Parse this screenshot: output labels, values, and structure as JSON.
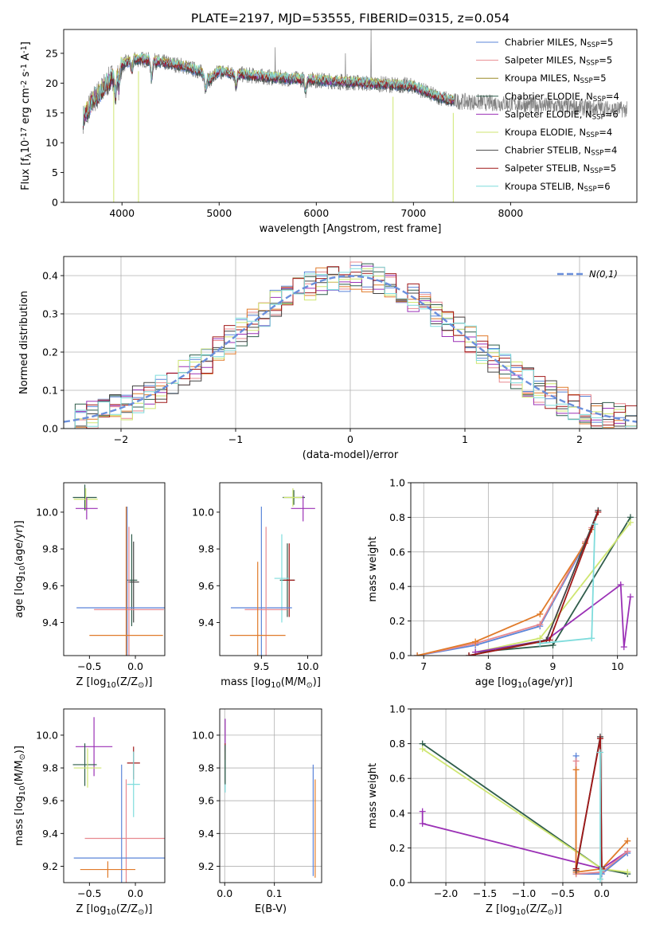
{
  "figure": {
    "title": "PLATE=2197, MJD=53555, FIBERID=0315, z=0.054"
  },
  "chart_data": [
    {
      "id": "spectrum",
      "type": "line",
      "xlabel": "wavelength [Angstrom, rest frame]",
      "ylabel": "Flux [f_λ10^-17 erg cm^-2 s^-1 A^-1]",
      "xlim": [
        3400,
        9300
      ],
      "ylim": [
        0,
        29
      ],
      "xticks": [
        4000,
        5000,
        6000,
        7000,
        8000
      ],
      "yticks": [
        0,
        5,
        10,
        15,
        20,
        25
      ],
      "grid": false,
      "legend_position": "right",
      "data_color": "#7f7f7f",
      "continuum": {
        "x": [
          3600,
          3700,
          3800,
          3900,
          4000,
          4100,
          4200,
          4400,
          4600,
          4800,
          4900,
          5000,
          5200,
          5500,
          6000,
          6500,
          7000,
          7200,
          7400
        ],
        "y": [
          14,
          17,
          19,
          21,
          23,
          24,
          24,
          23.5,
          23,
          22,
          20.5,
          22,
          21.5,
          21,
          20.5,
          20,
          19.5,
          18,
          17
        ]
      },
      "absorption_dips": [
        {
          "x": 3934,
          "depth": 4
        },
        {
          "x": 3969,
          "depth": 3
        },
        {
          "x": 4102,
          "depth": 2
        },
        {
          "x": 4304,
          "depth": 3
        },
        {
          "x": 4861,
          "depth": 2
        },
        {
          "x": 5175,
          "depth": 2
        },
        {
          "x": 5890,
          "depth": 2
        }
      ],
      "data_spikes": [
        {
          "x": 6563,
          "y": 29
        },
        {
          "x": 5577,
          "y": 26
        },
        {
          "x": 6300,
          "y": 25
        }
      ],
      "data_gaps": [
        {
          "x": 3915,
          "y": 0
        },
        {
          "x": 4170,
          "y": 0
        },
        {
          "x": 6790,
          "y": 0
        },
        {
          "x": 7410,
          "y": 0
        }
      ],
      "series": [
        {
          "name": "Chabrier MILES, N_SSP=5",
          "color": "#5b85d9"
        },
        {
          "name": "Salpeter MILES, N_SSP=5",
          "color": "#e8898f"
        },
        {
          "name": "Kroupa MILES, N_SSP=5",
          "color": "#9a8a28"
        },
        {
          "name": "Chabrier ELODIE, N_SSP=4",
          "color": "#2f5d4b"
        },
        {
          "name": "Salpeter ELODIE, N_SSP=6",
          "color": "#9b31b6"
        },
        {
          "name": "Kroupa ELODIE, N_SSP=4",
          "color": "#cfe671"
        },
        {
          "name": "Chabrier STELIB, N_SSP=4",
          "color": "#444444"
        },
        {
          "name": "Salpeter STELIB, N_SSP=5",
          "color": "#a01818"
        },
        {
          "name": "Kroupa STELIB, N_SSP=6",
          "color": "#7fdcdc"
        }
      ]
    },
    {
      "id": "residuals",
      "type": "line",
      "xlabel": "(data-model)/error",
      "ylabel": "Normed distribution",
      "xlim": [
        -2.5,
        2.5
      ],
      "ylim": [
        0,
        0.45
      ],
      "xticks": [
        -2,
        -1,
        0,
        1,
        2
      ],
      "yticks": [
        0.0,
        0.1,
        0.2,
        0.3,
        0.4
      ],
      "grid": true,
      "legend_position": "top-right",
      "reference_curve": {
        "name": "N(0,1)",
        "color": "#6a8fdc",
        "style": "dashed",
        "mean": 0,
        "sigma": 1
      },
      "bin_width": 0.1,
      "histogram_colors": [
        "#5b85d9",
        "#e8898f",
        "#e07b2a",
        "#2f5d4b",
        "#9b31b6",
        "#cfe671",
        "#444444",
        "#a01818",
        "#7fdcdc"
      ],
      "histogram_jitter": 0.02
    },
    {
      "id": "age_vs_z",
      "type": "scatter",
      "xlabel": "Z [log10(Z/Z⊙)]",
      "ylabel": "age  [log10(age/yr)]",
      "xlim": [
        -0.78,
        0.32
      ],
      "ylim": [
        9.22,
        10.16
      ],
      "xticks": [
        -0.5,
        0.0
      ],
      "yticks": [
        9.4,
        9.6,
        9.8,
        10.0
      ],
      "grid": false,
      "points": [
        {
          "x": -0.55,
          "y": 10.08,
          "xerr": 0.13,
          "yerr": 0.07,
          "color": "#2f5d4b"
        },
        {
          "x": -0.54,
          "y": 10.07,
          "xerr": 0.13,
          "yerr": 0.06,
          "color": "#cfe671"
        },
        {
          "x": -0.53,
          "y": 10.02,
          "xerr": 0.12,
          "yerr": 0.06,
          "color": "#9b31b6"
        },
        {
          "x": -0.04,
          "y": 9.63,
          "xerr": 0.06,
          "yerr": 0.25,
          "color": "#2f5d4b"
        },
        {
          "x": -0.02,
          "y": 9.62,
          "xerr": 0.06,
          "yerr": 0.22,
          "color": "#444444"
        },
        {
          "x": -0.09,
          "y": 9.48,
          "xerr": 0.55,
          "yerr": 0.55,
          "color": "#5b85d9"
        },
        {
          "x": -0.07,
          "y": 9.47,
          "xerr": 0.38,
          "yerr": 0.45,
          "color": "#e8898f"
        },
        {
          "x": -0.1,
          "y": 9.33,
          "xerr": 0.4,
          "yerr": 0.7,
          "color": "#e07b2a"
        }
      ]
    },
    {
      "id": "age_vs_mass",
      "type": "scatter",
      "xlabel": "mass [log10(M/M⊙)]",
      "ylabel": "",
      "xlim": [
        9.05,
        10.15
      ],
      "ylim": [
        9.22,
        10.16
      ],
      "xticks": [
        9.5,
        10.0
      ],
      "yticks": [
        9.4,
        9.6,
        9.8,
        10.0
      ],
      "grid": false,
      "points": [
        {
          "x": 9.85,
          "y": 10.08,
          "xerr": 0.12,
          "yerr": 0.04,
          "color": "#2f5d4b"
        },
        {
          "x": 9.84,
          "y": 10.08,
          "xerr": 0.1,
          "yerr": 0.05,
          "color": "#cfe671"
        },
        {
          "x": 9.95,
          "y": 10.02,
          "xerr": 0.13,
          "yerr": 0.07,
          "color": "#9b31b6"
        },
        {
          "x": 9.78,
          "y": 9.63,
          "xerr": 0.08,
          "yerr": 0.2,
          "color": "#2f5d4b"
        },
        {
          "x": 9.8,
          "y": 9.63,
          "xerr": 0.06,
          "yerr": 0.2,
          "color": "#a01818"
        },
        {
          "x": 9.72,
          "y": 9.64,
          "xerr": 0.08,
          "yerr": 0.24,
          "color": "#7fdcdc"
        },
        {
          "x": 9.5,
          "y": 9.48,
          "xerr": 0.33,
          "yerr": 0.55,
          "color": "#5b85d9"
        },
        {
          "x": 9.55,
          "y": 9.47,
          "xerr": 0.23,
          "yerr": 0.45,
          "color": "#e8898f"
        },
        {
          "x": 9.46,
          "y": 9.33,
          "xerr": 0.3,
          "yerr": 0.4,
          "color": "#e07b2a"
        }
      ]
    },
    {
      "id": "weight_vs_age",
      "type": "line",
      "xlabel": "age  [log10(age/yr)]",
      "ylabel": "mass weight",
      "xlim": [
        6.8,
        10.3
      ],
      "ylim": [
        0,
        1.0
      ],
      "xticks": [
        7,
        8,
        9,
        10
      ],
      "yticks": [
        0.0,
        0.2,
        0.4,
        0.6,
        0.8,
        1.0
      ],
      "grid": true,
      "series": [
        {
          "color": "#5b85d9",
          "x": [
            6.9,
            7.8,
            8.8,
            9.5,
            9.6
          ],
          "y": [
            0.0,
            0.06,
            0.17,
            0.65,
            0.73
          ]
        },
        {
          "color": "#e8898f",
          "x": [
            6.9,
            7.8,
            8.8,
            9.5,
            9.6
          ],
          "y": [
            0.0,
            0.07,
            0.18,
            0.66,
            0.74
          ]
        },
        {
          "color": "#e07b2a",
          "x": [
            6.9,
            7.8,
            8.8,
            9.5,
            9.6
          ],
          "y": [
            0.0,
            0.08,
            0.24,
            0.65,
            0.73
          ]
        },
        {
          "color": "#2f5d4b",
          "x": [
            7.8,
            9.0,
            10.2
          ],
          "y": [
            0.02,
            0.06,
            0.8
          ]
        },
        {
          "color": "#cfe671",
          "x": [
            7.8,
            8.8,
            10.2
          ],
          "y": [
            0.02,
            0.1,
            0.77
          ]
        },
        {
          "color": "#9b31b6",
          "x": [
            7.8,
            8.9,
            10.05,
            10.1,
            10.2
          ],
          "y": [
            0.02,
            0.09,
            0.41,
            0.05,
            0.34
          ]
        },
        {
          "color": "#444444",
          "x": [
            7.7,
            8.9,
            9.7
          ],
          "y": [
            0.0,
            0.09,
            0.84
          ]
        },
        {
          "color": "#a01818",
          "x": [
            7.7,
            8.95,
            9.7
          ],
          "y": [
            0.0,
            0.09,
            0.83
          ]
        },
        {
          "color": "#7fdcdc",
          "x": [
            8.8,
            9.6,
            9.65
          ],
          "y": [
            0.07,
            0.1,
            0.76
          ]
        }
      ]
    },
    {
      "id": "mass_vs_z",
      "type": "scatter",
      "xlabel": "Z [log10(Z/Z⊙)]",
      "ylabel": "mass [log10(M/M⊙)]",
      "xlim": [
        -0.78,
        0.32
      ],
      "ylim": [
        9.1,
        10.16
      ],
      "xticks": [
        -0.5,
        0.0
      ],
      "yticks": [
        9.2,
        9.4,
        9.6,
        9.8,
        10.0
      ],
      "grid": false,
      "points": [
        {
          "x": -0.45,
          "y": 9.93,
          "xerr": 0.2,
          "yerr": 0.18,
          "color": "#9b31b6"
        },
        {
          "x": -0.55,
          "y": 9.82,
          "xerr": 0.13,
          "yerr": 0.13,
          "color": "#2f5d4b"
        },
        {
          "x": -0.52,
          "y": 9.8,
          "xerr": 0.15,
          "yerr": 0.12,
          "color": "#cfe671"
        },
        {
          "x": -0.02,
          "y": 9.83,
          "xerr": 0.07,
          "yerr": 0.1,
          "color": "#a01818"
        },
        {
          "x": -0.02,
          "y": 9.7,
          "xerr": 0.07,
          "yerr": 0.2,
          "color": "#7fdcdc"
        },
        {
          "x": -0.1,
          "y": 9.37,
          "xerr": 0.45,
          "yerr": 0.36,
          "color": "#e8898f"
        },
        {
          "x": -0.15,
          "y": 9.25,
          "xerr": 0.52,
          "yerr": 0.57,
          "color": "#5b85d9"
        },
        {
          "x": -0.3,
          "y": 9.18,
          "xerr": 0.3,
          "yerr": 0.05,
          "color": "#e07b2a"
        }
      ]
    },
    {
      "id": "mass_vs_ebv",
      "type": "scatter",
      "xlabel": "E(B-V)",
      "ylabel": "",
      "xlim": [
        -0.01,
        0.195
      ],
      "ylim": [
        9.1,
        10.16
      ],
      "xticks": [
        0.0,
        0.1
      ],
      "yticks": [
        9.2,
        9.4,
        9.6,
        9.8,
        10.0
      ],
      "grid": true,
      "points": [
        {
          "x": 0.001,
          "y": 10.0,
          "xerr": 0,
          "yerr": 0.1,
          "color": "#9b31b6"
        },
        {
          "x": 0.001,
          "y": 9.83,
          "xerr": 0,
          "yerr": 0.12,
          "color": "#a01818"
        },
        {
          "x": 0.001,
          "y": 9.75,
          "xerr": 0,
          "yerr": 0.1,
          "color": "#7fdcdc"
        },
        {
          "x": 0.001,
          "y": 9.82,
          "xerr": 0,
          "yerr": 0.12,
          "color": "#2f5d4b"
        },
        {
          "x": 0.178,
          "y": 9.48,
          "xerr": 0,
          "yerr": 0.34,
          "color": "#5b85d9"
        },
        {
          "x": 0.182,
          "y": 9.43,
          "xerr": 0,
          "yerr": 0.3,
          "color": "#e07b2a"
        }
      ]
    },
    {
      "id": "weight_vs_z",
      "type": "line",
      "xlabel": "Z [log10(Z/Z⊙)]",
      "ylabel": "mass weight",
      "xlim": [
        -2.45,
        0.45
      ],
      "ylim": [
        0,
        1.0
      ],
      "xticks": [
        -2.0,
        -1.5,
        -1.0,
        -0.5,
        0.0
      ],
      "yticks": [
        0.0,
        0.2,
        0.4,
        0.6,
        0.8,
        1.0
      ],
      "grid": true,
      "series": [
        {
          "color": "#2f5d4b",
          "x": [
            -2.3,
            0.0,
            0.33
          ],
          "y": [
            0.8,
            0.08,
            0.05
          ]
        },
        {
          "color": "#cfe671",
          "x": [
            -2.3,
            0.0,
            0.33
          ],
          "y": [
            0.77,
            0.08,
            0.06
          ]
        },
        {
          "color": "#9b31b6",
          "x": [
            -2.3,
            -2.3,
            0.0,
            0.33
          ],
          "y": [
            0.41,
            0.34,
            0.08,
            0.18
          ]
        },
        {
          "color": "#5b85d9",
          "x": [
            -0.33,
            -0.33,
            0.0,
            0.33
          ],
          "y": [
            0.73,
            0.05,
            0.05,
            0.17
          ]
        },
        {
          "color": "#e8898f",
          "x": [
            -0.33,
            -0.33,
            0.0,
            0.33
          ],
          "y": [
            0.7,
            0.05,
            0.06,
            0.18
          ]
        },
        {
          "color": "#e07b2a",
          "x": [
            -0.33,
            -0.33,
            0.0,
            0.33
          ],
          "y": [
            0.65,
            0.06,
            0.08,
            0.24
          ]
        },
        {
          "color": "#444444",
          "x": [
            -0.33,
            -0.02,
            0.0
          ],
          "y": [
            0.07,
            0.84,
            0.09
          ]
        },
        {
          "color": "#a01818",
          "x": [
            -0.33,
            -0.02,
            0.0
          ],
          "y": [
            0.08,
            0.83,
            0.08
          ]
        },
        {
          "color": "#7fdcdc",
          "x": [
            -0.02,
            -0.02,
            0.0
          ],
          "y": [
            0.75,
            0.02,
            0.07
          ]
        }
      ]
    }
  ]
}
